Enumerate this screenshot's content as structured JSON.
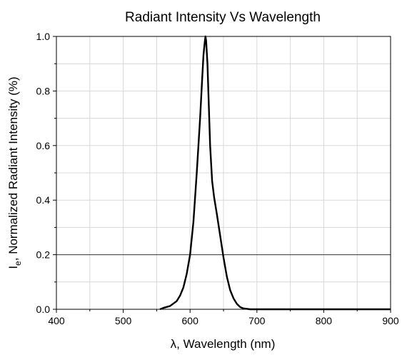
{
  "chart_data": {
    "type": "line",
    "title": "Radiant Intensity Vs Wavelength",
    "xlabel_main": "λ, Wavelength (nm)",
    "ylabel_symbol": "I",
    "ylabel_subscript": "e",
    "ylabel_rest": ", Normalized Radiant Intensity (%)",
    "xlim": [
      400,
      900
    ],
    "ylim": [
      0,
      1.0
    ],
    "xticks": [
      400,
      500,
      600,
      700,
      800,
      900
    ],
    "xtick_labels": [
      "400",
      "500",
      "600",
      "700",
      "800",
      "900"
    ],
    "yticks": [
      0.0,
      0.2,
      0.4,
      0.6,
      0.8,
      1.0
    ],
    "ytick_labels": [
      "0.0",
      "0.2",
      "0.4",
      "0.6",
      "0.8",
      "1.0"
    ],
    "grid": true,
    "line_color": "#000000",
    "grid_color": "#d8d8d8",
    "highlight_gridline_y": 0.2,
    "series": [
      {
        "x": [
          555,
          560,
          570,
          580,
          585,
          590,
          595,
          600,
          605,
          610,
          615,
          618,
          620,
          622,
          623,
          624,
          626,
          628,
          630,
          633,
          636,
          640,
          645,
          650,
          655,
          660,
          665,
          670,
          675,
          680,
          690,
          700,
          750,
          800,
          850,
          900
        ],
        "y": [
          0.0,
          0.005,
          0.012,
          0.03,
          0.05,
          0.08,
          0.13,
          0.2,
          0.32,
          0.5,
          0.7,
          0.84,
          0.93,
          0.98,
          1.0,
          0.985,
          0.9,
          0.75,
          0.6,
          0.47,
          0.41,
          0.35,
          0.27,
          0.19,
          0.12,
          0.07,
          0.04,
          0.02,
          0.008,
          0.003,
          0.0,
          0.0,
          0.0,
          0.0,
          0.0,
          0.0
        ]
      }
    ]
  }
}
